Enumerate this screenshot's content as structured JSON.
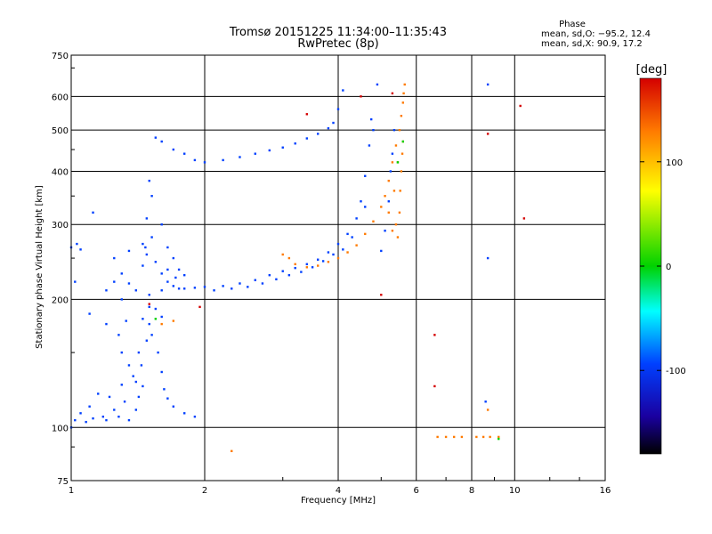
{
  "chart_data": {
    "type": "scatter",
    "title": "Tromsø 20151225 11:34:00–11:35:43",
    "subtitle": "RwPretec (8p)",
    "xlabel": "Frequency [MHz]",
    "ylabel": "Stationary phase Virtual Height [km]",
    "x_scale": "log",
    "y_scale": "log",
    "xlim": [
      1,
      16
    ],
    "ylim": [
      75,
      750
    ],
    "x_ticks": [
      1,
      2,
      4,
      6,
      8,
      10,
      16
    ],
    "y_ticks": [
      75,
      100,
      200,
      300,
      400,
      500,
      600,
      750
    ],
    "grid": true,
    "stats": {
      "heading": "Phase",
      "line_o": "mean, sd,O: −95.2, 12.4",
      "line_x": "mean, sd,X:  90.9, 17.2"
    },
    "colorbar": {
      "label": "[deg]",
      "range": [
        -180,
        180
      ],
      "ticks": [
        100,
        0,
        -100
      ],
      "colors": [
        "#d40000",
        "#ff7a00",
        "#ffff00",
        "#00d200",
        "#00ffff",
        "#0040ff",
        "#1a00a0",
        "#000000"
      ]
    },
    "series": [
      {
        "color_phase": -100,
        "points": [
          [
            1.0,
            100
          ],
          [
            1.02,
            104
          ],
          [
            1.05,
            108
          ],
          [
            1.08,
            103
          ],
          [
            1.1,
            112
          ],
          [
            1.12,
            105
          ],
          [
            1.15,
            120
          ],
          [
            1.18,
            106
          ],
          [
            1.2,
            104
          ],
          [
            1.22,
            118
          ],
          [
            1.25,
            110
          ],
          [
            1.28,
            106
          ],
          [
            1.3,
            126
          ],
          [
            1.32,
            115
          ],
          [
            1.35,
            104
          ],
          [
            1.38,
            132
          ],
          [
            1.4,
            110
          ],
          [
            1.42,
            150
          ],
          [
            1.44,
            140
          ],
          [
            1.45,
            125
          ],
          [
            1.48,
            160
          ],
          [
            1.5,
            175
          ],
          [
            1.52,
            165
          ],
          [
            1.55,
            190
          ],
          [
            1.57,
            150
          ],
          [
            1.6,
            135
          ],
          [
            1.62,
            123
          ],
          [
            1.65,
            117
          ],
          [
            1.7,
            112
          ],
          [
            1.8,
            108
          ],
          [
            1.9,
            106
          ],
          [
            1.0,
            265
          ],
          [
            1.03,
            270
          ],
          [
            1.05,
            262
          ],
          [
            1.02,
            220
          ],
          [
            1.25,
            250
          ],
          [
            1.3,
            230
          ],
          [
            1.35,
            218
          ],
          [
            1.4,
            210
          ],
          [
            1.45,
            240
          ],
          [
            1.47,
            265
          ],
          [
            1.48,
            310
          ],
          [
            1.5,
            380
          ],
          [
            1.52,
            350
          ],
          [
            1.55,
            245
          ],
          [
            1.6,
            230
          ],
          [
            1.65,
            220
          ],
          [
            1.7,
            215
          ],
          [
            1.75,
            212
          ],
          [
            1.8,
            212
          ],
          [
            1.9,
            213
          ],
          [
            2.0,
            214
          ],
          [
            2.2,
            215
          ],
          [
            2.4,
            218
          ],
          [
            2.6,
            222
          ],
          [
            2.8,
            228
          ],
          [
            3.0,
            233
          ],
          [
            3.2,
            237
          ],
          [
            3.4,
            242
          ],
          [
            3.6,
            248
          ],
          [
            3.8,
            258
          ],
          [
            4.0,
            270
          ],
          [
            4.2,
            285
          ],
          [
            4.4,
            310
          ],
          [
            4.5,
            340
          ],
          [
            4.6,
            390
          ],
          [
            4.7,
            460
          ],
          [
            4.75,
            530
          ],
          [
            1.55,
            480
          ],
          [
            1.6,
            470
          ],
          [
            1.7,
            450
          ],
          [
            1.8,
            440
          ],
          [
            1.9,
            425
          ],
          [
            2.0,
            420
          ],
          [
            2.2,
            425
          ],
          [
            2.4,
            432
          ],
          [
            2.6,
            440
          ],
          [
            2.8,
            448
          ],
          [
            3.0,
            455
          ],
          [
            3.2,
            465
          ],
          [
            3.4,
            478
          ],
          [
            3.6,
            490
          ],
          [
            3.8,
            505
          ],
          [
            3.9,
            520
          ],
          [
            4.0,
            560
          ],
          [
            4.1,
            620
          ],
          [
            5.0,
            260
          ],
          [
            5.1,
            290
          ],
          [
            5.2,
            340
          ],
          [
            5.25,
            400
          ],
          [
            5.3,
            440
          ],
          [
            5.35,
            500
          ],
          [
            1.12,
            320
          ],
          [
            1.65,
            235
          ],
          [
            1.72,
            225
          ],
          [
            1.3,
            200
          ],
          [
            1.5,
            205
          ],
          [
            1.6,
            210
          ],
          [
            1.25,
            220
          ],
          [
            1.2,
            210
          ],
          [
            1.35,
            260
          ],
          [
            1.45,
            270
          ],
          [
            1.48,
            255
          ],
          [
            1.52,
            280
          ],
          [
            1.6,
            300
          ],
          [
            1.65,
            265
          ],
          [
            1.7,
            250
          ],
          [
            1.75,
            235
          ],
          [
            1.8,
            228
          ],
          [
            2.1,
            210
          ],
          [
            2.3,
            212
          ],
          [
            2.5,
            214
          ],
          [
            2.7,
            218
          ],
          [
            2.9,
            223
          ],
          [
            3.1,
            228
          ],
          [
            3.3,
            232
          ],
          [
            3.5,
            238
          ],
          [
            3.7,
            246
          ],
          [
            3.9,
            255
          ],
          [
            4.1,
            262
          ],
          [
            4.3,
            280
          ],
          [
            4.6,
            330
          ],
          [
            4.8,
            500
          ],
          [
            4.9,
            640
          ],
          [
            1.1,
            185
          ],
          [
            1.2,
            175
          ],
          [
            1.3,
            150
          ],
          [
            1.35,
            140
          ],
          [
            1.4,
            128
          ],
          [
            1.42,
            118
          ],
          [
            1.28,
            165
          ],
          [
            1.33,
            178
          ],
          [
            1.45,
            180
          ],
          [
            1.5,
            192
          ],
          [
            1.6,
            182
          ],
          [
            8.7,
            250
          ],
          [
            8.6,
            115
          ],
          [
            8.7,
            640
          ]
        ]
      },
      {
        "color_phase": 110,
        "points": [
          [
            3.0,
            255
          ],
          [
            3.1,
            250
          ],
          [
            3.2,
            242
          ],
          [
            3.4,
            238
          ],
          [
            3.6,
            240
          ],
          [
            3.8,
            245
          ],
          [
            4.0,
            250
          ],
          [
            4.2,
            258
          ],
          [
            4.4,
            268
          ],
          [
            4.6,
            285
          ],
          [
            4.8,
            305
          ],
          [
            5.0,
            330
          ],
          [
            5.1,
            350
          ],
          [
            5.2,
            380
          ],
          [
            5.3,
            420
          ],
          [
            5.4,
            460
          ],
          [
            5.5,
            500
          ],
          [
            5.55,
            540
          ],
          [
            5.6,
            580
          ],
          [
            5.62,
            610
          ],
          [
            5.65,
            640
          ],
          [
            5.45,
            280
          ],
          [
            5.5,
            320
          ],
          [
            5.52,
            360
          ],
          [
            5.55,
            400
          ],
          [
            5.58,
            440
          ],
          [
            5.6,
            470
          ],
          [
            5.4,
            300
          ],
          [
            5.3,
            290
          ],
          [
            5.2,
            320
          ],
          [
            5.35,
            360
          ],
          [
            5.45,
            420
          ],
          [
            1.6,
            175
          ],
          [
            1.7,
            178
          ],
          [
            2.3,
            88
          ],
          [
            6.7,
            95
          ],
          [
            7.0,
            95
          ],
          [
            7.3,
            95
          ],
          [
            7.6,
            95
          ],
          [
            8.2,
            95
          ],
          [
            8.5,
            95
          ],
          [
            8.8,
            95
          ],
          [
            9.2,
            95
          ],
          [
            8.7,
            110
          ]
        ]
      },
      {
        "color_phase": 160,
        "points": [
          [
            1.5,
            195
          ],
          [
            1.95,
            192
          ],
          [
            3.4,
            545
          ],
          [
            4.5,
            600
          ],
          [
            5.3,
            610
          ],
          [
            8.7,
            490
          ],
          [
            6.6,
            165
          ],
          [
            6.6,
            125
          ],
          [
            10.3,
            570
          ],
          [
            10.5,
            310
          ],
          [
            5.0,
            205
          ]
        ]
      },
      {
        "color_phase": 40,
        "points": [
          [
            1.55,
            180
          ],
          [
            5.6,
            470
          ],
          [
            5.45,
            420
          ],
          [
            9.2,
            94
          ]
        ]
      }
    ]
  }
}
